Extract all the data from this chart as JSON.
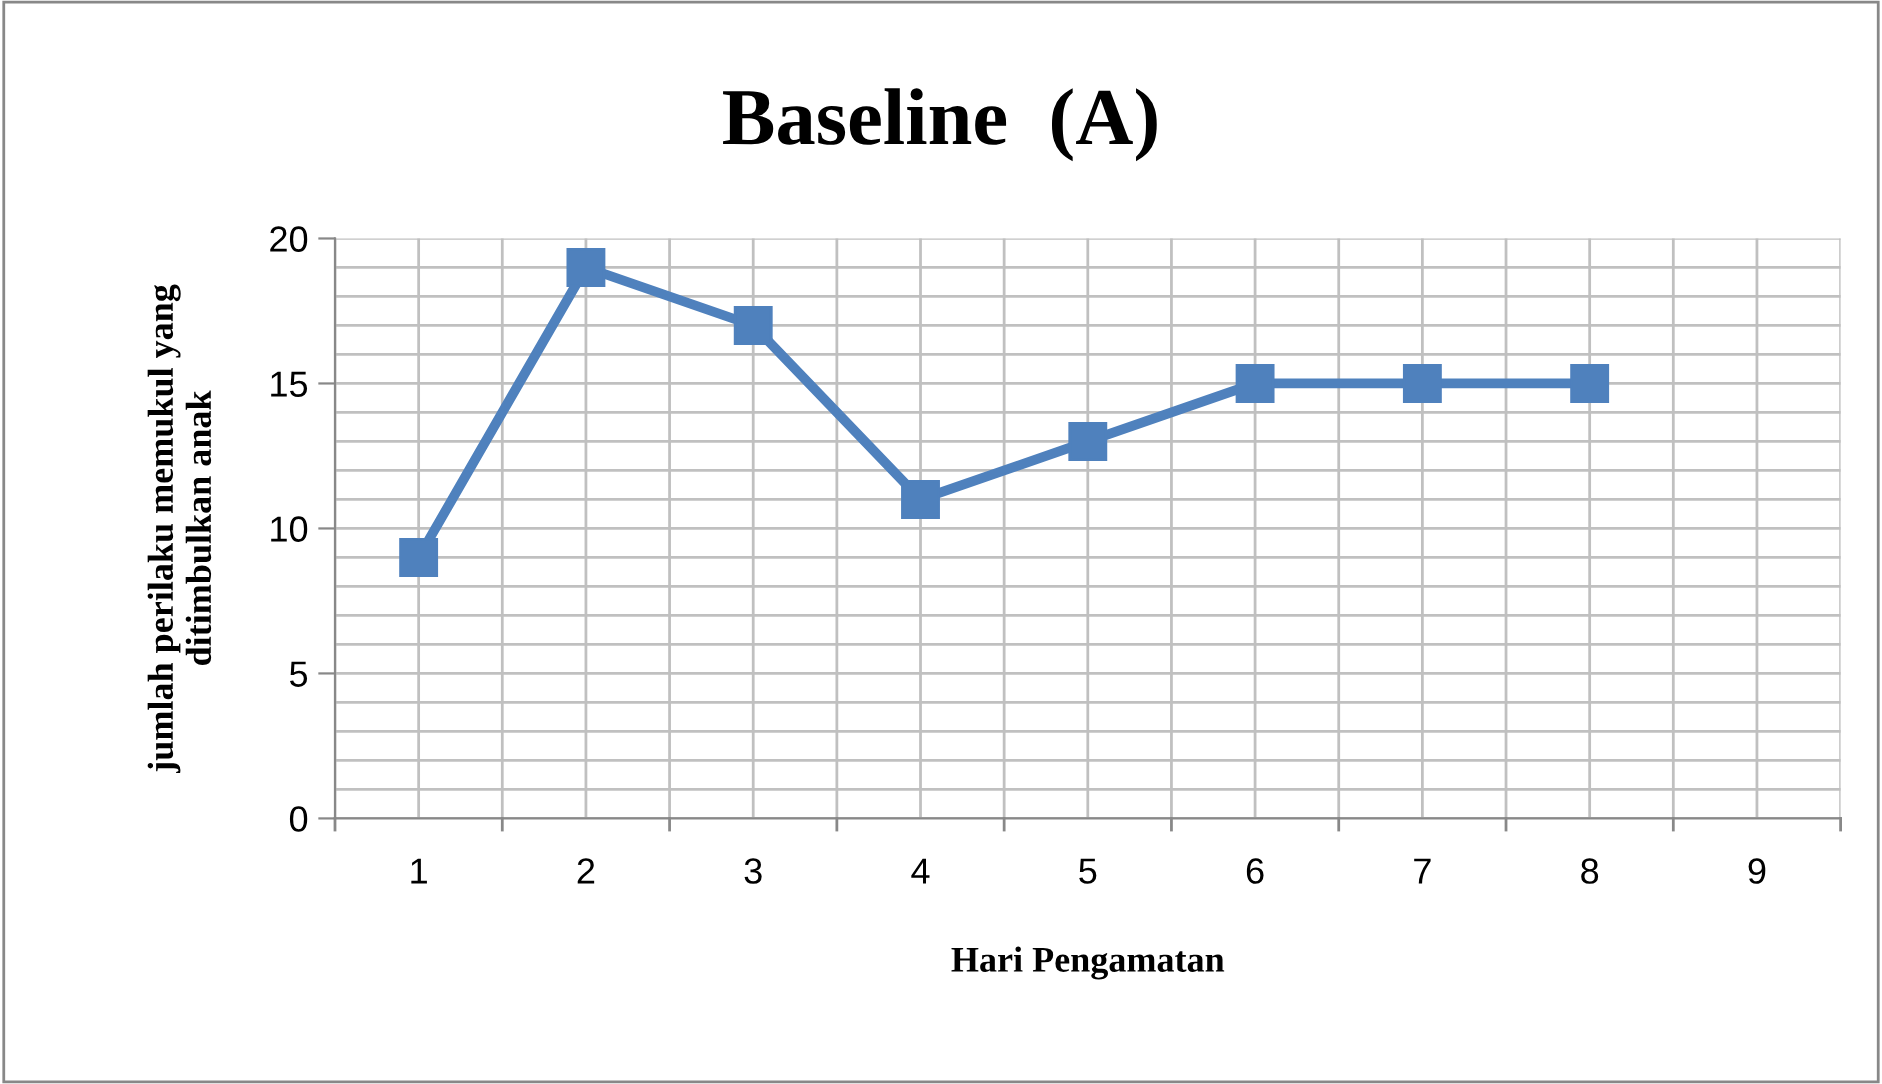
{
  "chart_data": {
    "type": "line",
    "title": "Baseline  (A)",
    "xlabel": "Hari Pengamatan",
    "ylabel": "jumlah perilaku memukul yang\nditimbulkan anak",
    "categories": [
      "1",
      "2",
      "3",
      "4",
      "5",
      "6",
      "7",
      "8",
      "9"
    ],
    "series": [
      {
        "color": "#4f81bd",
        "values": [
          9,
          19,
          17,
          11,
          13,
          15,
          15,
          15,
          null
        ]
      }
    ],
    "ylim": [
      0,
      20
    ],
    "yticks": [
      0,
      5,
      10,
      15,
      20
    ],
    "grid": true,
    "marker": "square",
    "line_style": "solid",
    "legend": false
  }
}
